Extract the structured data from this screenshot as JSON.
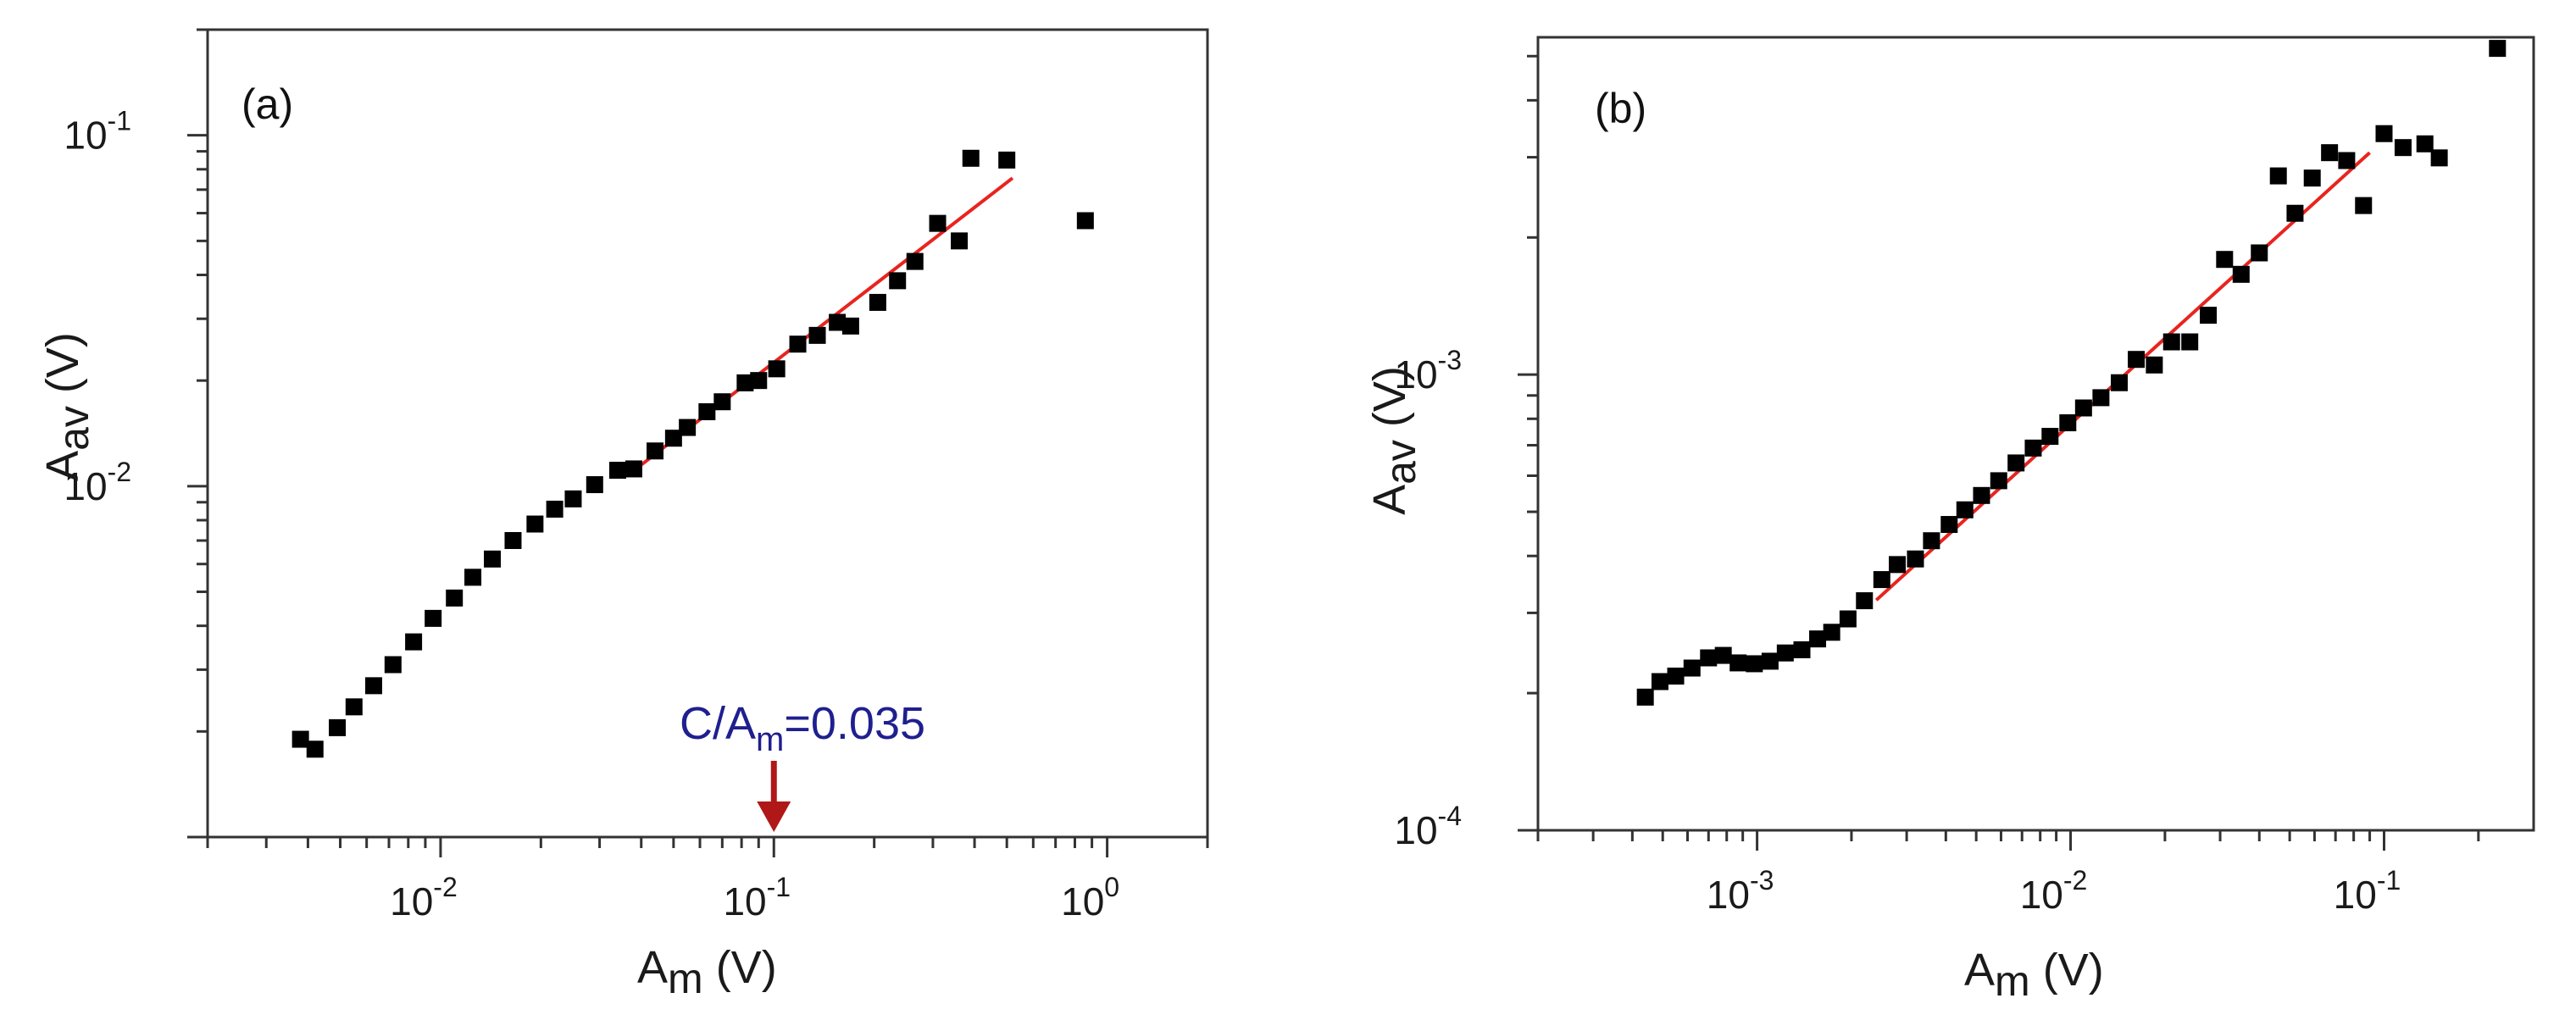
{
  "chart_data": [
    {
      "panel_label": "(a)",
      "type": "scatter",
      "xscale": "log",
      "yscale": "log",
      "xlim": [
        0.002,
        2.0
      ],
      "ylim": [
        0.001,
        0.2
      ],
      "xticks": [
        {
          "value": 0.01,
          "base": "10",
          "exp": "-2"
        },
        {
          "value": 0.1,
          "base": "10",
          "exp": "-1"
        },
        {
          "value": 1.0,
          "base": "10",
          "exp": "0"
        }
      ],
      "yticks": [
        {
          "value": 0.01,
          "base": "10",
          "exp": "-2"
        },
        {
          "value": 0.1,
          "base": "10",
          "exp": "-1"
        }
      ],
      "xlabel": {
        "main": "A",
        "sub": "m",
        "unit": " (V)"
      },
      "ylabel": {
        "main": "A",
        "sub": "av",
        "unit": " (V)"
      },
      "colors": {
        "points": "#000000",
        "fit": "#e8241f",
        "annotation": "#1f1f8f",
        "arrow": "#b01818",
        "frame": "#333333"
      },
      "annotation": {
        "text_main": "C/A",
        "text_sub": "m",
        "text_value": "=0.035",
        "arrow_x": 0.1
      },
      "fit_line": {
        "x": [
          0.04,
          0.52
        ],
        "y": [
          0.0115,
          0.0755
        ]
      },
      "points": [
        {
          "x": 0.0038,
          "y": 0.0019
        },
        {
          "x": 0.0042,
          "y": 0.00178
        },
        {
          "x": 0.0049,
          "y": 0.00205
        },
        {
          "x": 0.0055,
          "y": 0.00235
        },
        {
          "x": 0.0063,
          "y": 0.0027
        },
        {
          "x": 0.0072,
          "y": 0.0031
        },
        {
          "x": 0.0083,
          "y": 0.0036
        },
        {
          "x": 0.0095,
          "y": 0.0042
        },
        {
          "x": 0.011,
          "y": 0.0048
        },
        {
          "x": 0.0125,
          "y": 0.0055
        },
        {
          "x": 0.0143,
          "y": 0.0062
        },
        {
          "x": 0.0165,
          "y": 0.007
        },
        {
          "x": 0.0192,
          "y": 0.0078
        },
        {
          "x": 0.022,
          "y": 0.0086
        },
        {
          "x": 0.025,
          "y": 0.0092
        },
        {
          "x": 0.029,
          "y": 0.0101
        },
        {
          "x": 0.034,
          "y": 0.0111
        },
        {
          "x": 0.038,
          "y": 0.0112
        },
        {
          "x": 0.044,
          "y": 0.0126
        },
        {
          "x": 0.05,
          "y": 0.0137
        },
        {
          "x": 0.055,
          "y": 0.0147
        },
        {
          "x": 0.063,
          "y": 0.0163
        },
        {
          "x": 0.07,
          "y": 0.0174
        },
        {
          "x": 0.082,
          "y": 0.0197
        },
        {
          "x": 0.09,
          "y": 0.02
        },
        {
          "x": 0.102,
          "y": 0.0216
        },
        {
          "x": 0.118,
          "y": 0.0254
        },
        {
          "x": 0.135,
          "y": 0.0269
        },
        {
          "x": 0.155,
          "y": 0.0293
        },
        {
          "x": 0.17,
          "y": 0.0286
        },
        {
          "x": 0.205,
          "y": 0.0334
        },
        {
          "x": 0.235,
          "y": 0.0385
        },
        {
          "x": 0.265,
          "y": 0.0437
        },
        {
          "x": 0.31,
          "y": 0.0561
        },
        {
          "x": 0.36,
          "y": 0.05
        },
        {
          "x": 0.39,
          "y": 0.086
        },
        {
          "x": 0.5,
          "y": 0.085
        },
        {
          "x": 0.86,
          "y": 0.0571
        }
      ]
    },
    {
      "panel_label": "(b)",
      "type": "scatter",
      "xscale": "log",
      "yscale": "log",
      "xlim": [
        0.0002,
        0.3
      ],
      "ylim": [
        0.0001,
        0.0055
      ],
      "xticks": [
        {
          "value": 0.001,
          "base": "10",
          "exp": "-3"
        },
        {
          "value": 0.01,
          "base": "10",
          "exp": "-2"
        },
        {
          "value": 0.1,
          "base": "10",
          "exp": "-1"
        }
      ],
      "yticks": [
        {
          "value": 0.0001,
          "base": "10",
          "exp": "-4"
        },
        {
          "value": 0.001,
          "base": "10",
          "exp": "-3"
        }
      ],
      "xlabel": {
        "main": "A",
        "sub": "m",
        "unit": " (V)"
      },
      "ylabel": {
        "main": "A",
        "sub": "av",
        "unit": " (V)"
      },
      "colors": {
        "points": "#000000",
        "fit": "#e8241f",
        "frame": "#333333"
      },
      "fit_line": {
        "x": [
          0.0024,
          0.09
        ],
        "y": [
          0.00032,
          0.00307
        ]
      },
      "points": [
        {
          "x": 0.00044,
          "y": 0.000196
        },
        {
          "x": 0.00049,
          "y": 0.000212
        },
        {
          "x": 0.00055,
          "y": 0.000218
        },
        {
          "x": 0.00062,
          "y": 0.000227
        },
        {
          "x": 0.0007,
          "y": 0.000239
        },
        {
          "x": 0.00078,
          "y": 0.000242
        },
        {
          "x": 0.00087,
          "y": 0.000233
        },
        {
          "x": 0.00098,
          "y": 0.000232
        },
        {
          "x": 0.0011,
          "y": 0.000235
        },
        {
          "x": 0.00123,
          "y": 0.000245
        },
        {
          "x": 0.00139,
          "y": 0.000249
        },
        {
          "x": 0.00156,
          "y": 0.000263
        },
        {
          "x": 0.00173,
          "y": 0.000272
        },
        {
          "x": 0.00195,
          "y": 0.000291
        },
        {
          "x": 0.0022,
          "y": 0.000319
        },
        {
          "x": 0.0025,
          "y": 0.000355
        },
        {
          "x": 0.0028,
          "y": 0.000383
        },
        {
          "x": 0.0032,
          "y": 0.000394
        },
        {
          "x": 0.0036,
          "y": 0.000432
        },
        {
          "x": 0.0041,
          "y": 0.000469
        },
        {
          "x": 0.0046,
          "y": 0.000505
        },
        {
          "x": 0.0052,
          "y": 0.000543
        },
        {
          "x": 0.0059,
          "y": 0.000585
        },
        {
          "x": 0.0067,
          "y": 0.00064
        },
        {
          "x": 0.0076,
          "y": 0.00069
        },
        {
          "x": 0.0086,
          "y": 0.000732
        },
        {
          "x": 0.0098,
          "y": 0.000784
        },
        {
          "x": 0.011,
          "y": 0.000845
        },
        {
          "x": 0.0125,
          "y": 0.00089
        },
        {
          "x": 0.0143,
          "y": 0.00096
        },
        {
          "x": 0.0162,
          "y": 0.00108
        },
        {
          "x": 0.0185,
          "y": 0.00105
        },
        {
          "x": 0.021,
          "y": 0.00118
        },
        {
          "x": 0.024,
          "y": 0.00118
        },
        {
          "x": 0.0275,
          "y": 0.00135
        },
        {
          "x": 0.031,
          "y": 0.00179
        },
        {
          "x": 0.035,
          "y": 0.00166
        },
        {
          "x": 0.04,
          "y": 0.00185
        },
        {
          "x": 0.046,
          "y": 0.00273
        },
        {
          "x": 0.052,
          "y": 0.00226
        },
        {
          "x": 0.059,
          "y": 0.0027
        },
        {
          "x": 0.067,
          "y": 0.00307
        },
        {
          "x": 0.076,
          "y": 0.00295
        },
        {
          "x": 0.086,
          "y": 0.00235
        },
        {
          "x": 0.1,
          "y": 0.00338
        },
        {
          "x": 0.115,
          "y": 0.00315
        },
        {
          "x": 0.135,
          "y": 0.00321
        },
        {
          "x": 0.15,
          "y": 0.00299
        },
        {
          "x": 0.23,
          "y": 0.0052
        }
      ]
    }
  ]
}
